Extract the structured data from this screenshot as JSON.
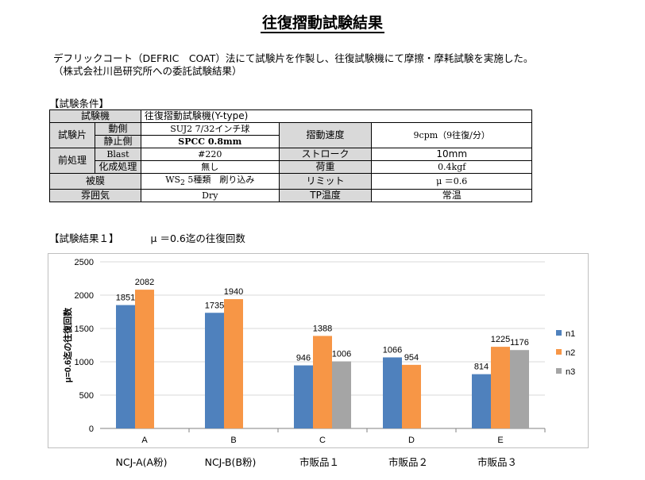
{
  "title": "往復摺動試験結果",
  "intro": {
    "line1": "デフリックコート（DEFRIC　COAT）法にて試験片を作製し、往復試験機にて摩擦・摩耗試験を実施した。",
    "line2": "（株式会社川邑研究所への委託試験結果）"
  },
  "conditions": {
    "heading": "【試験条件】",
    "machine_label": "試験機",
    "machine_value": "往復摺動試験機(Y-type)",
    "specimen_label": "試験片",
    "moving_label": "動側",
    "moving_value": "SUJ2 7/32インチ球",
    "stationary_label": "静止側",
    "stationary_value": "SPCC 0.8mm",
    "speed_label": "摺動速度",
    "speed_value": "9cpm（9往復/分）",
    "pretreat_label": "前処理",
    "blast_label": "Blast",
    "blast_value": "#220",
    "chem_label": "化成処理",
    "chem_value": "無し",
    "stroke_label": "ストローク",
    "stroke_value": "10mm",
    "load_label": "荷重",
    "load_value": "0.4kgf",
    "coating_label": "被膜",
    "coating_value_pre": "WS",
    "coating_value_sub": "2",
    "coating_value_post": " 5種類　刷り込み",
    "limit_label": "リミット",
    "limit_value": "μ ＝0.6",
    "atmos_label": "雰囲気",
    "atmos_value": "Dry",
    "tp_label": "TP温度",
    "tp_value": "常温"
  },
  "results": {
    "heading": "【試験結果１】",
    "subheading": "μ ＝0.6迄の往復回数"
  },
  "sample_names": [
    "NCJ-A(A粉)",
    "NCJ-B(B粉)",
    "市販品１",
    "市販品２",
    "市販品３"
  ],
  "chart_data": {
    "type": "bar",
    "categories": [
      "A",
      "B",
      "C",
      "D",
      "E"
    ],
    "ylabel": "μ=0.6迄の往復回数",
    "ylim": [
      0,
      2500
    ],
    "yticks": [
      0,
      500,
      1000,
      1500,
      2000,
      2500
    ],
    "grid": true,
    "legend_position": "right",
    "series": [
      {
        "name": "n1",
        "color": "#4f81bd",
        "values": [
          1851,
          1735,
          946,
          1066,
          814
        ]
      },
      {
        "name": "n2",
        "color": "#f79646",
        "values": [
          2082,
          1940,
          1388,
          954,
          1225
        ]
      },
      {
        "name": "n3",
        "color": "#a5a5a5",
        "values": [
          null,
          null,
          1006,
          null,
          1176
        ]
      }
    ]
  }
}
